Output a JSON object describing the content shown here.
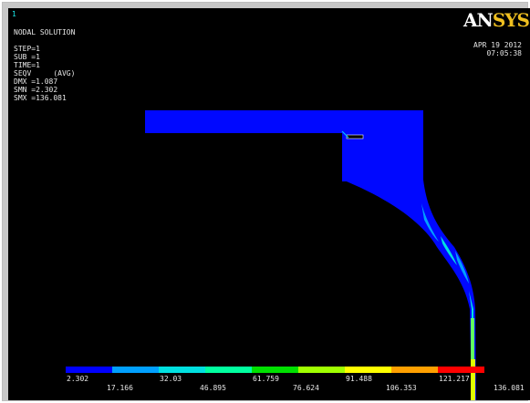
{
  "window_number": "1",
  "logo": {
    "part1": "AN",
    "part2": "SYS"
  },
  "date": "APR 19 2012",
  "time": "07:05:38",
  "info_lines": [
    "NODAL SOLUTION",
    "",
    "STEP=1",
    "SUB =1",
    "TIME=1",
    "SEQV     (AVG)",
    "DMX =1.087",
    "SMN =2.302",
    "SMX =136.081"
  ],
  "legend": {
    "colors": [
      "#0000ff",
      "#00a0ff",
      "#00e0e0",
      "#00ffa0",
      "#00e000",
      "#a0ff00",
      "#ffff00",
      "#ffa000",
      "#ff0000"
    ],
    "top_labels": [
      "2.302",
      "32.03",
      "61.759",
      "91.488",
      "121.217"
    ],
    "bottom_labels": [
      "17.166",
      "46.895",
      "76.624",
      "106.353",
      "136.081"
    ]
  }
}
